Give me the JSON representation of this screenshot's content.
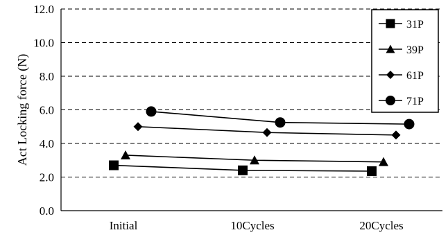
{
  "chart_data": {
    "type": "line",
    "categories": [
      "Initial",
      "10Cycles",
      "20Cycles"
    ],
    "ylabel": "Act  Locking force (N)",
    "ylim": [
      0,
      12
    ],
    "yticks": [
      "0.0",
      "2.0",
      "4.0",
      "6.0",
      "8.0",
      "10.0",
      "12.0"
    ],
    "grid": true,
    "legend_position": "top-right",
    "series": [
      {
        "name": "31P",
        "marker": "square",
        "values": [
          2.7,
          2.4,
          2.35
        ]
      },
      {
        "name": "39P",
        "marker": "triangle",
        "values": [
          3.3,
          3.0,
          2.9
        ]
      },
      {
        "name": "61P",
        "marker": "diamond",
        "values": [
          5.0,
          4.65,
          4.5
        ]
      },
      {
        "name": "71P",
        "marker": "circle",
        "values": [
          5.9,
          5.25,
          5.15
        ]
      }
    ]
  }
}
